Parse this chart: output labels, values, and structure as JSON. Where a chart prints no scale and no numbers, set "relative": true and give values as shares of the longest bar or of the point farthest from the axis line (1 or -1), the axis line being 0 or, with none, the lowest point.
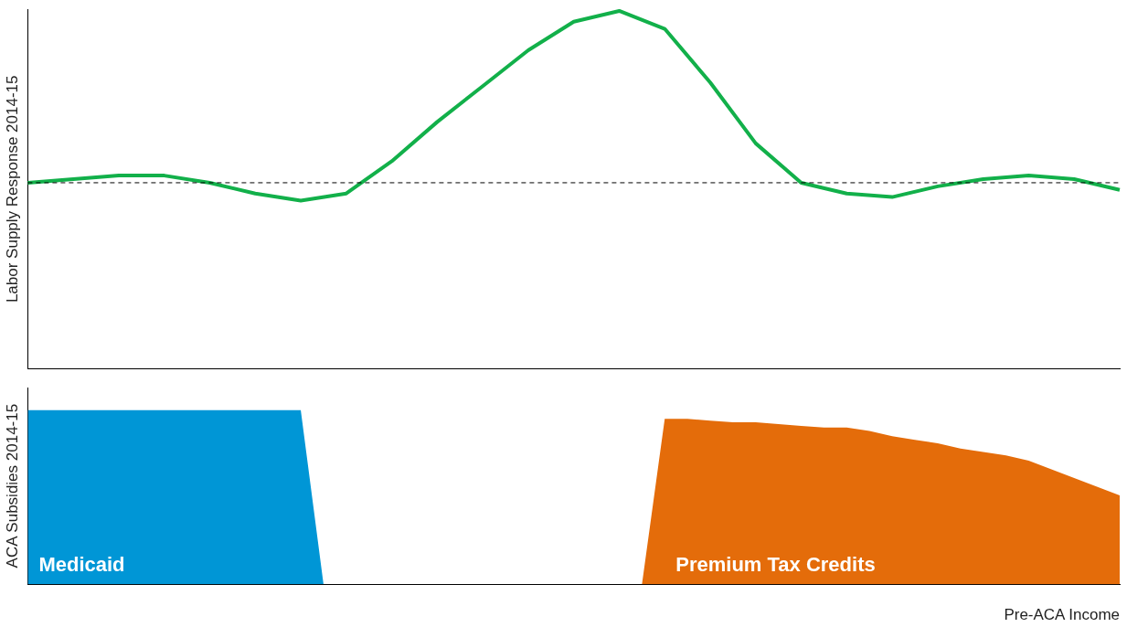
{
  "chart_data": [
    {
      "type": "line",
      "ylabel": "Labor Supply Response 2014-15",
      "relative": true,
      "legend": false,
      "grid": false,
      "marker": "none",
      "line_style": "solid",
      "categories": [
        null,
        null,
        null,
        null,
        null,
        null,
        null,
        null,
        null,
        null,
        null,
        null,
        null,
        null,
        null,
        null,
        null,
        null,
        null,
        null,
        null,
        null,
        null,
        null,
        null
      ],
      "series": [
        {
          "color": "#12b04a",
          "values": [
            0.52,
            0.53,
            0.54,
            0.54,
            0.52,
            0.49,
            0.47,
            0.49,
            0.58,
            0.69,
            0.79,
            0.89,
            0.97,
            1.0,
            0.95,
            0.8,
            0.63,
            0.52,
            0.49,
            0.48,
            0.51,
            0.53,
            0.54,
            0.53,
            0.5
          ]
        }
      ],
      "ref_lines": [
        {
          "axis": "y",
          "value": 0.52,
          "color": "#000000",
          "line_style": "dashed"
        }
      ]
    },
    {
      "type": "area",
      "ylabel": "ACA Subsidies 2014-15",
      "xlabel": "Pre-ACA Income",
      "relative": true,
      "legend": false,
      "grid": false,
      "categories": [
        null,
        null,
        null,
        null,
        null,
        null,
        null,
        null,
        null,
        null,
        null,
        null,
        null,
        null,
        null,
        null,
        null,
        null,
        null,
        null,
        null,
        null,
        null,
        null,
        null,
        null,
        null,
        null,
        null,
        null,
        null,
        null,
        null,
        null,
        null,
        null,
        null,
        null,
        null,
        null,
        null,
        null,
        null,
        null,
        null,
        null,
        null,
        null,
        null
      ],
      "series": [
        {
          "name": "Medicaid",
          "color": "#0096d6",
          "values": [
            1,
            1,
            1,
            1,
            1,
            1,
            1,
            1,
            1,
            1,
            1,
            1,
            1,
            0,
            0,
            0,
            0,
            0,
            0,
            0,
            0,
            0,
            0,
            0,
            0,
            0,
            0,
            0,
            0,
            0,
            0,
            0,
            0,
            0,
            0,
            0,
            0,
            0,
            0,
            0,
            0,
            0,
            0,
            0,
            0,
            0,
            0,
            0,
            0
          ]
        },
        {
          "name": "Premium Tax Credits",
          "color": "#e46c0a",
          "values": [
            0,
            0,
            0,
            0,
            0,
            0,
            0,
            0,
            0,
            0,
            0,
            0,
            0,
            0,
            0,
            0,
            0,
            0,
            0,
            0,
            0,
            0,
            0,
            0,
            0,
            0,
            0,
            0,
            0.95,
            0.95,
            0.94,
            0.93,
            0.93,
            0.92,
            0.91,
            0.9,
            0.9,
            0.88,
            0.85,
            0.83,
            0.81,
            0.78,
            0.76,
            0.74,
            0.71,
            0.66,
            0.61,
            0.56,
            0.51
          ]
        }
      ]
    }
  ]
}
